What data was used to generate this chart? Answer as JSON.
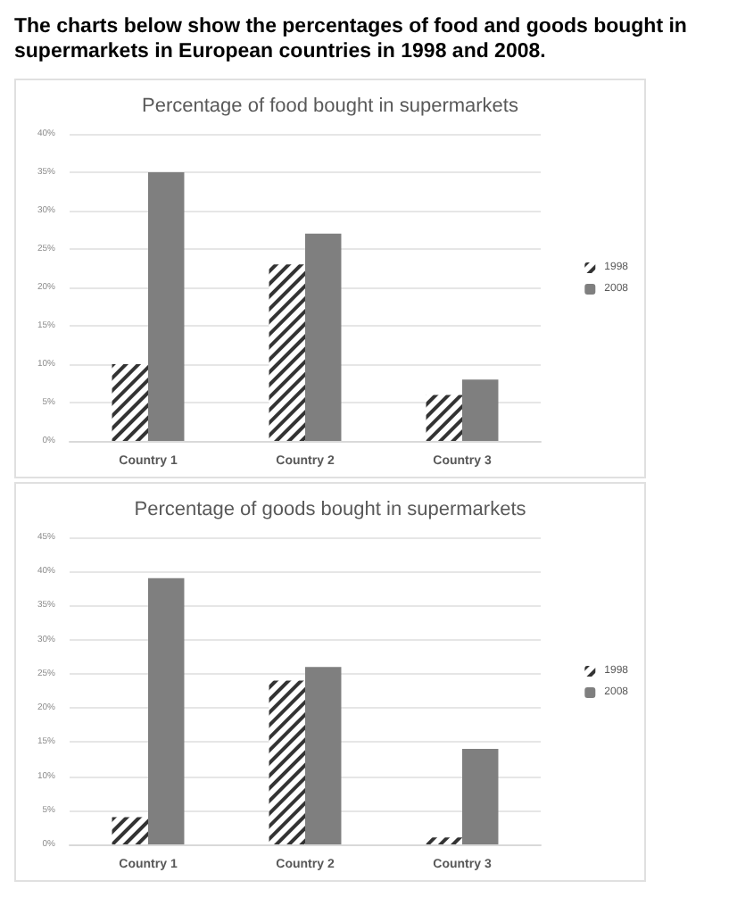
{
  "chart_data": [
    {
      "type": "bar",
      "annotations": [
        "The charts below show the percentages of food and goods bought in supermarkets in European countries in 1998 and 2008."
      ],
      "title": "Percentage of food bought in supermarkets",
      "categories": [
        "Country 1",
        "Country 2",
        "Country 3"
      ],
      "series": [
        {
          "name": "1998",
          "color": "#333333",
          "values": [
            10,
            23,
            6
          ]
        },
        {
          "name": "2008",
          "color": "#7f7f7f",
          "values": [
            35,
            27,
            8
          ]
        }
      ],
      "ylim": [
        0,
        40
      ],
      "yticks": [
        {
          "value": 0,
          "label": "0%"
        },
        {
          "value": 5,
          "label": "5%"
        },
        {
          "value": 10,
          "label": "10%"
        },
        {
          "value": 15,
          "label": "15%"
        },
        {
          "value": 20,
          "label": "20%"
        },
        {
          "value": 25,
          "label": "25%"
        },
        {
          "value": 30,
          "label": "30%"
        },
        {
          "value": 35,
          "label": "35%"
        },
        {
          "value": 40,
          "label": "40%"
        }
      ],
      "grid": "y",
      "legend": "right"
    },
    {
      "type": "bar",
      "title": "Percentage of goods bought in supermarkets",
      "categories": [
        "Country 1",
        "Country 2",
        "Country 3"
      ],
      "series": [
        {
          "name": "1998",
          "color": "#333333",
          "values": [
            4,
            24,
            1
          ]
        },
        {
          "name": "2008",
          "color": "#7f7f7f",
          "values": [
            39,
            26,
            14
          ]
        }
      ],
      "ylim": [
        0,
        45
      ],
      "yticks": [
        {
          "value": 0,
          "label": "0%"
        },
        {
          "value": 5,
          "label": "5%"
        },
        {
          "value": 10,
          "label": "10%"
        },
        {
          "value": 15,
          "label": "15%"
        },
        {
          "value": 20,
          "label": "20%"
        },
        {
          "value": 25,
          "label": "25%"
        },
        {
          "value": 30,
          "label": "30%"
        },
        {
          "value": 35,
          "label": "35%"
        },
        {
          "value": 40,
          "label": "40%"
        },
        {
          "value": 45,
          "label": "45%"
        }
      ],
      "grid": "y",
      "legend": "right"
    }
  ]
}
